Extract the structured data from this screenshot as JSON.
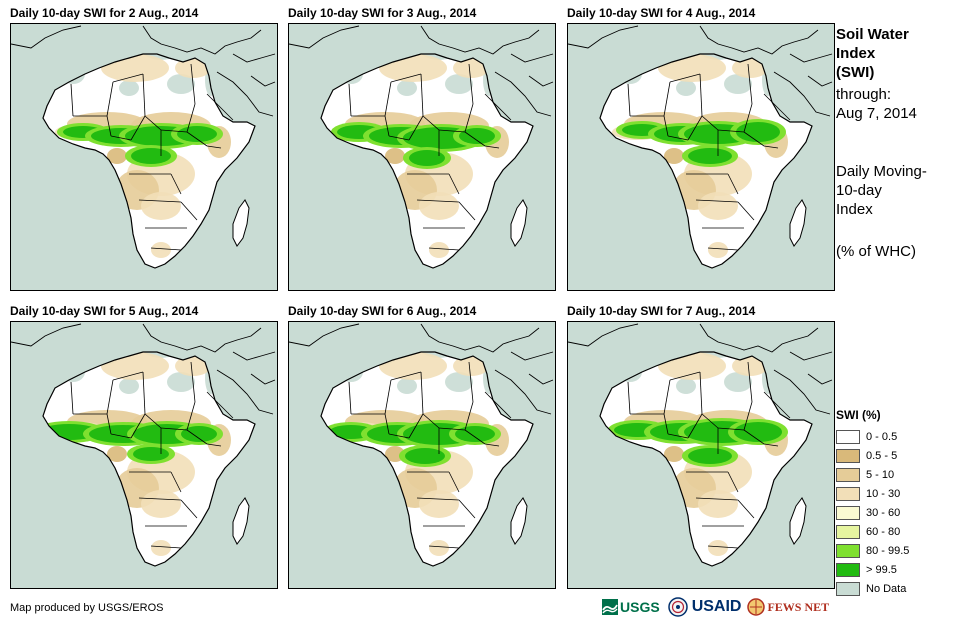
{
  "panels": [
    {
      "title": "Daily 10-day SWI for 2 Aug., 2014"
    },
    {
      "title": "Daily 10-day SWI for 3 Aug., 2014"
    },
    {
      "title": "Daily 10-day SWI for 4 Aug., 2014"
    },
    {
      "title": "Daily 10-day SWI for 5 Aug., 2014"
    },
    {
      "title": "Daily 10-day SWI for 6 Aug., 2014"
    },
    {
      "title": "Daily 10-day SWI for 7 Aug., 2014"
    }
  ],
  "side": {
    "title_lines": [
      "Soil Water",
      "Index",
      "(SWI)"
    ],
    "through_lines": [
      "through:",
      "Aug 7, 2014"
    ],
    "desc_lines": [
      "Daily Moving-",
      "10-day",
      "Index"
    ],
    "unit": "(% of WHC)"
  },
  "legend": {
    "title": "SWI (%)",
    "items": [
      {
        "label": "0 - 0.5",
        "color": "#ffffff"
      },
      {
        "label": "0.5 - 5",
        "color": "#d9b97a"
      },
      {
        "label": "5 - 10",
        "color": "#e5cc98"
      },
      {
        "label": "10 - 30",
        "color": "#f2dfb8"
      },
      {
        "label": "30 - 60",
        "color": "#fafad2"
      },
      {
        "label": "60 - 80",
        "color": "#e6f5a0"
      },
      {
        "label": "80 - 99.5",
        "color": "#7fe030"
      },
      {
        "label": "> 99.5",
        "color": "#22bb11"
      },
      {
        "label": "No Data",
        "color": "#c9dcd4"
      }
    ]
  },
  "credit": "Map produced by USGS/EROS",
  "logos": {
    "usgs": "USGS",
    "usaid": "USAID",
    "fews": "FEWS NET"
  }
}
